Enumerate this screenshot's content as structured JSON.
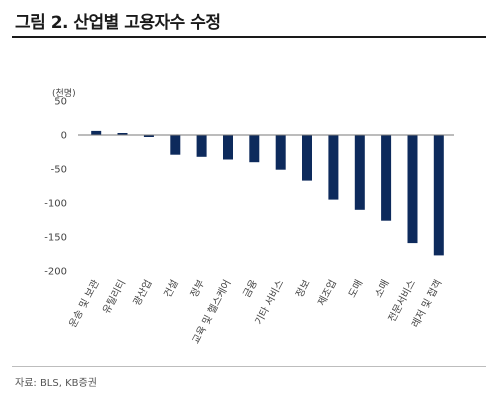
{
  "figure": {
    "title": "그림 2. 산업별 고용자수 수정",
    "source": "자료: BLS, KB증권"
  },
  "chart_data": {
    "type": "bar",
    "unit_label": "(천명)",
    "categories": [
      "운송 및 보관",
      "유틸리티",
      "광산업",
      "건설",
      "정부",
      "교육 및 헬스케어",
      "금융",
      "기타 서비스",
      "정보",
      "제조업",
      "도매",
      "소매",
      "전문서비스",
      "레저 및 접객"
    ],
    "values": [
      6,
      3,
      -3,
      -29,
      -32,
      -36,
      -40,
      -51,
      -67,
      -95,
      -110,
      -126,
      -159,
      -177
    ],
    "ylim": [
      -200,
      50
    ],
    "yticks": [
      50,
      0,
      -50,
      -100,
      -150,
      -200
    ],
    "grid": false,
    "bar_color": "#0d2a5c",
    "axis_color": "#7a7a7a"
  }
}
